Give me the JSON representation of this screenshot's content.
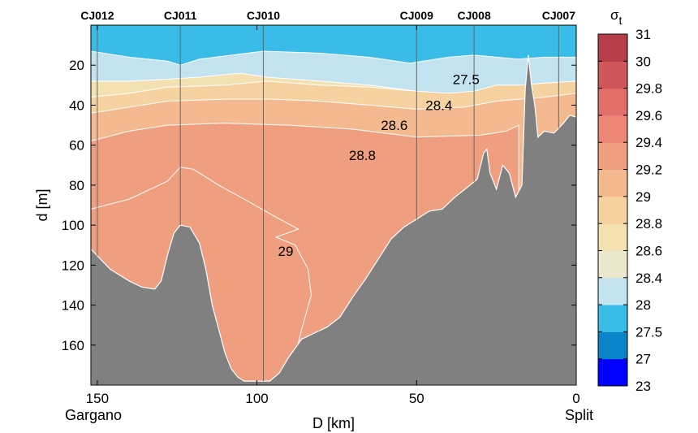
{
  "chart_data": {
    "type": "heatmap",
    "xlabel": "D [km]",
    "ylabel": "d [m]",
    "xlim": [
      152,
      0
    ],
    "ylim": [
      0,
      180
    ],
    "y_reversed": true,
    "x_ticks": [
      150,
      100,
      50,
      0
    ],
    "y_ticks": [
      20,
      40,
      60,
      80,
      100,
      120,
      140,
      160
    ],
    "x_end_labels": {
      "left": "Gargano",
      "right": "Split"
    },
    "stations": [
      {
        "name": "CJ012",
        "x": 150
      },
      {
        "name": "CJ011",
        "x": 124
      },
      {
        "name": "CJ010",
        "x": 98
      },
      {
        "name": "CJ009",
        "x": 50
      },
      {
        "name": "CJ008",
        "x": 32
      },
      {
        "name": "CJ007",
        "x": 5.5
      }
    ],
    "colorbar": {
      "title": "σt",
      "levels": [
        "23",
        "27",
        "27.5",
        "28",
        "28.4",
        "28.6",
        "28.8",
        "29",
        "29.2",
        "29.4",
        "29.6",
        "29.8",
        "30",
        "31"
      ],
      "colors": [
        "#0000ff",
        "#0a84c8",
        "#39bde8",
        "#c2e3ef",
        "#ece8cf",
        "#f3e1b1",
        "#f6d2a0",
        "#f4b98f",
        "#f09e80",
        "#ed8677",
        "#e06e69",
        "#cf565a",
        "#b63d4a"
      ]
    },
    "contour_labels": [
      {
        "text": "27.5",
        "x": 34.5,
        "y": 27
      },
      {
        "text": "28.4",
        "x": 43,
        "y": 40
      },
      {
        "text": "28.6",
        "x": 57,
        "y": 50
      },
      {
        "text": "28.8",
        "x": 67,
        "y": 65
      },
      {
        "text": "29",
        "x": 91,
        "y": 113
      }
    ],
    "layers": [
      {
        "sigma": "29.2",
        "color": "#f09e80",
        "top": [
          [
            152,
            92
          ],
          [
            140,
            87
          ],
          [
            128,
            78
          ],
          [
            124,
            71
          ],
          [
            120,
            72
          ],
          [
            112,
            80
          ],
          [
            104,
            87
          ],
          [
            94,
            96
          ],
          [
            87,
            102
          ],
          [
            94,
            106
          ],
          [
            88,
            110
          ],
          [
            84,
            122
          ],
          [
            83,
            135
          ],
          [
            86,
            152
          ],
          [
            88,
            165
          ],
          [
            90,
            181
          ]
        ]
      },
      {
        "sigma": "29",
        "color": "#f4b98f",
        "top": [
          [
            152,
            58
          ],
          [
            140,
            53
          ],
          [
            128,
            50
          ],
          [
            110,
            49
          ],
          [
            90,
            50
          ],
          [
            70,
            52
          ],
          [
            50,
            56
          ],
          [
            30,
            55
          ],
          [
            22,
            53
          ],
          [
            18,
            50
          ]
        ]
      },
      {
        "sigma": "28.8",
        "color": "#f6d2a0",
        "top": [
          [
            152,
            44
          ],
          [
            140,
            41
          ],
          [
            128,
            38
          ],
          [
            110,
            37
          ],
          [
            95,
            37
          ],
          [
            80,
            38
          ],
          [
            65,
            40
          ],
          [
            50,
            42
          ],
          [
            35,
            41
          ],
          [
            25,
            38
          ],
          [
            18,
            37
          ],
          [
            10,
            36
          ],
          [
            0,
            34
          ]
        ]
      },
      {
        "sigma": "28.6",
        "color": "#f3e1b1",
        "top": [
          [
            152,
            36
          ],
          [
            140,
            34
          ],
          [
            128,
            31
          ],
          [
            110,
            30
          ],
          [
            97,
            28
          ],
          [
            80,
            30
          ],
          [
            65,
            31
          ],
          [
            50,
            33
          ],
          [
            35,
            31
          ],
          [
            25,
            29
          ],
          [
            18,
            28
          ],
          [
            10,
            27
          ],
          [
            0,
            26
          ]
        ]
      },
      {
        "sigma": "28.4",
        "color": "#ece8cf",
        "top": [
          [
            152,
            28
          ],
          [
            140,
            28
          ],
          [
            128,
            27
          ],
          [
            115,
            25
          ],
          [
            105,
            21
          ],
          [
            98,
            20
          ],
          [
            80,
            21
          ],
          [
            65,
            22
          ],
          [
            52,
            23
          ],
          [
            40,
            22
          ],
          [
            32,
            21
          ],
          [
            25,
            20
          ],
          [
            18,
            19
          ],
          [
            10,
            17
          ],
          [
            0,
            17
          ]
        ]
      },
      {
        "sigma": "28",
        "color": "#c2e3ef",
        "top": [
          [
            152,
            28
          ],
          [
            140,
            28
          ],
          [
            128,
            27
          ],
          [
            118,
            26
          ],
          [
            112,
            25
          ],
          [
            105,
            24
          ],
          [
            97,
            26
          ],
          [
            80,
            28
          ],
          [
            65,
            30
          ],
          [
            50,
            33
          ],
          [
            40,
            34
          ],
          [
            32,
            33
          ],
          [
            25,
            30
          ],
          [
            18,
            30
          ],
          [
            10,
            29
          ],
          [
            0,
            28
          ]
        ]
      },
      {
        "sigma": "27.5",
        "color": "#39bde8",
        "top": [
          [
            152,
            13
          ],
          [
            140,
            16
          ],
          [
            128,
            18
          ],
          [
            124,
            20
          ],
          [
            118,
            17
          ],
          [
            108,
            15
          ],
          [
            98,
            13
          ],
          [
            80,
            14
          ],
          [
            65,
            16
          ],
          [
            52,
            19
          ],
          [
            48,
            18
          ],
          [
            40,
            16
          ],
          [
            32,
            15
          ],
          [
            25,
            16
          ],
          [
            18,
            17
          ],
          [
            10,
            16
          ],
          [
            0,
            16
          ]
        ]
      },
      {
        "sigma": "27",
        "color": "#0a84c8",
        "top": [
          [
            152,
            0
          ],
          [
            0,
            0
          ]
        ]
      }
    ],
    "bathymetry": [
      [
        152,
        112
      ],
      [
        146,
        122
      ],
      [
        140,
        128
      ],
      [
        136,
        131
      ],
      [
        132,
        132
      ],
      [
        130,
        128
      ],
      [
        128,
        115
      ],
      [
        126,
        104
      ],
      [
        124,
        100
      ],
      [
        121,
        101
      ],
      [
        118,
        109
      ],
      [
        116,
        122
      ],
      [
        114,
        140
      ],
      [
        112,
        152
      ],
      [
        110,
        164
      ],
      [
        108,
        172
      ],
      [
        106,
        176
      ],
      [
        104,
        178
      ],
      [
        100,
        178
      ],
      [
        96,
        178
      ],
      [
        93,
        174
      ],
      [
        90,
        166
      ],
      [
        86,
        157
      ],
      [
        82,
        154
      ],
      [
        78,
        151
      ],
      [
        74,
        146
      ],
      [
        70,
        136
      ],
      [
        66,
        127
      ],
      [
        62,
        117
      ],
      [
        58,
        107
      ],
      [
        54,
        101
      ],
      [
        50,
        97
      ],
      [
        46,
        93
      ],
      [
        42,
        92
      ],
      [
        38,
        86
      ],
      [
        34,
        81
      ],
      [
        31,
        77
      ],
      [
        29,
        64
      ],
      [
        28,
        62
      ],
      [
        27,
        74
      ],
      [
        25,
        82
      ],
      [
        23,
        70
      ],
      [
        21,
        74
      ],
      [
        19,
        86
      ],
      [
        17,
        80
      ],
      [
        16,
        32
      ],
      [
        15,
        15
      ],
      [
        14,
        30
      ],
      [
        13,
        40
      ],
      [
        12,
        56
      ],
      [
        10,
        53
      ],
      [
        7,
        54
      ],
      [
        4,
        49
      ],
      [
        2,
        45
      ],
      [
        0,
        46
      ]
    ]
  }
}
